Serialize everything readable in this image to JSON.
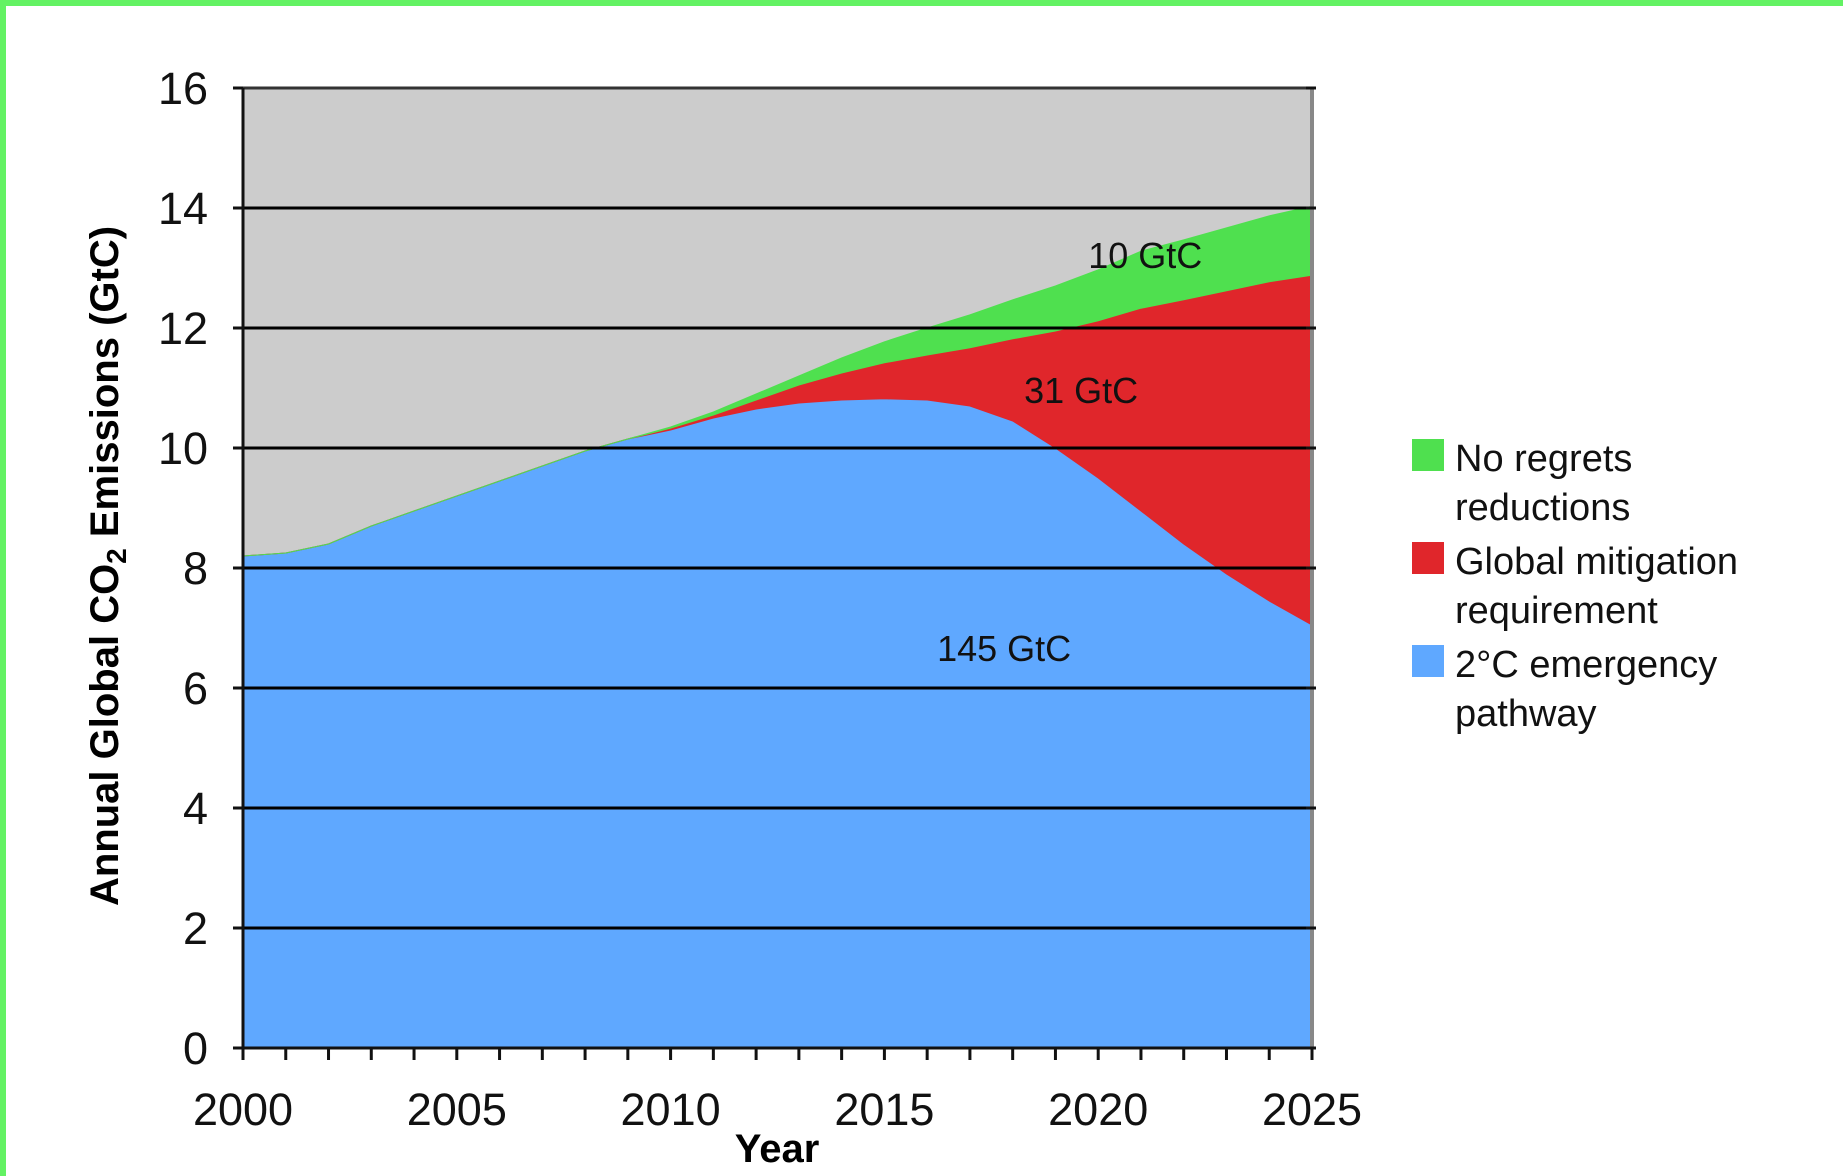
{
  "chart_data": {
    "type": "area",
    "title": "",
    "xlabel": "Year",
    "ylabel_parts": {
      "before": "Annual Global CO",
      "sub": "2",
      "after": " Emissions (GtC)"
    },
    "xlim": [
      2000,
      2025
    ],
    "ylim": [
      0,
      16
    ],
    "x_ticks": [
      "2000",
      "2005",
      "2010",
      "2015",
      "2020",
      "2025"
    ],
    "y_ticks": [
      "0",
      "2",
      "4",
      "6",
      "8",
      "10",
      "12",
      "14",
      "16"
    ],
    "grid": "horizontal",
    "plot_background": "#cccccc",
    "legend_position": "right",
    "x": [
      2000,
      2001,
      2002,
      2003,
      2004,
      2005,
      2006,
      2007,
      2008,
      2009,
      2010,
      2011,
      2012,
      2013,
      2014,
      2015,
      2016,
      2017,
      2018,
      2019,
      2020,
      2021,
      2022,
      2023,
      2024,
      2025
    ],
    "series": [
      {
        "name": "2°C emergency pathway",
        "color": "#5fa8ff",
        "values": [
          8.2,
          8.25,
          8.4,
          8.7,
          8.95,
          9.2,
          9.45,
          9.7,
          9.95,
          10.15,
          10.3,
          10.5,
          10.65,
          10.75,
          10.8,
          10.82,
          10.8,
          10.7,
          10.45,
          10.0,
          9.5,
          8.95,
          8.4,
          7.9,
          7.45,
          7.05
        ]
      },
      {
        "name": "Global mitigation requirement",
        "color": "#e0262b",
        "values": [
          0,
          0,
          0,
          0,
          0,
          0,
          0,
          0,
          0,
          0,
          0.03,
          0.05,
          0.15,
          0.3,
          0.45,
          0.6,
          0.75,
          0.97,
          1.37,
          1.95,
          2.62,
          3.38,
          4.07,
          4.72,
          5.32,
          5.83
        ]
      },
      {
        "name": "No regrets reductions",
        "color": "#4fe04f",
        "values": [
          0,
          0,
          0,
          0,
          0,
          0,
          0,
          0,
          0,
          0,
          0.02,
          0.05,
          0.1,
          0.15,
          0.25,
          0.35,
          0.45,
          0.55,
          0.65,
          0.75,
          0.85,
          0.95,
          1.0,
          1.05,
          1.1,
          1.15
        ]
      }
    ],
    "annotations": [
      {
        "text": "10 GtC",
        "x": 2021.1,
        "y": 13.2
      },
      {
        "text": "31 GtC",
        "x": 2019.6,
        "y": 10.95
      },
      {
        "text": "145 GtC",
        "x": 2017.8,
        "y": 6.65
      }
    ],
    "legend": [
      {
        "lines": [
          "No regrets",
          "reductions"
        ],
        "color": "#4fe04f"
      },
      {
        "lines": [
          "Global mitigation",
          "requirement"
        ],
        "color": "#e0262b"
      },
      {
        "lines": [
          "2°C emergency",
          "pathway"
        ],
        "color": "#5fa8ff"
      }
    ]
  }
}
